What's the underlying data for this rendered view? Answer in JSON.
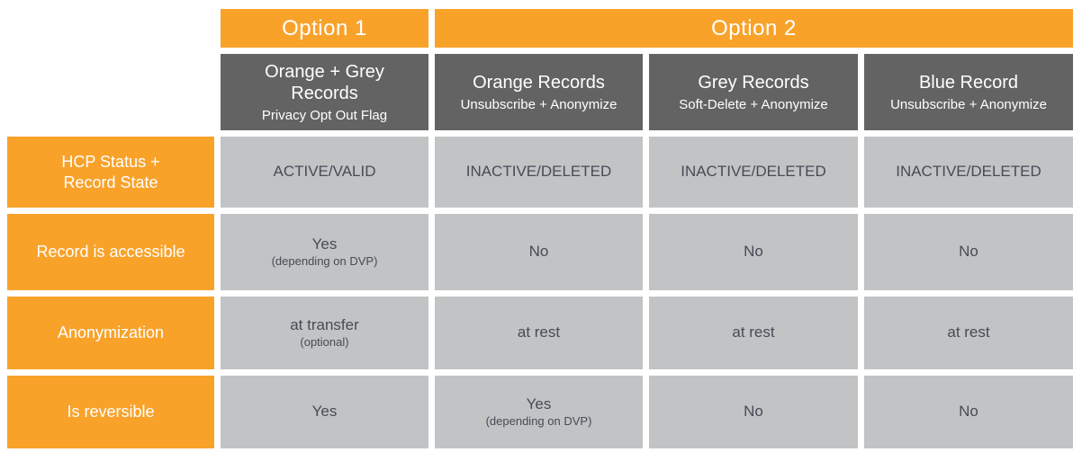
{
  "colors": {
    "orange": "#F9A22A",
    "header_grey": "#636363",
    "cell_grey": "#C2C3C5",
    "cell_text": "#474B54",
    "white_text": "#FFFFFF"
  },
  "option_row": {
    "option1": "Option 1",
    "option2": "Option 2"
  },
  "column_headers": [
    {
      "title": "Orange + Grey\nRecords",
      "subtitle": "Privacy Opt Out Flag"
    },
    {
      "title": "Orange Records",
      "subtitle": "Unsubscribe + Anonymize"
    },
    {
      "title": "Grey Records",
      "subtitle": "Soft-Delete + Anonymize"
    },
    {
      "title": "Blue Record",
      "subtitle": "Unsubscribe + Anonymize"
    }
  ],
  "rows": [
    {
      "label": "HCP Status +\nRecord State",
      "cells": [
        {
          "main": "ACTIVE/VALID"
        },
        {
          "main": "INACTIVE/DELETED"
        },
        {
          "main": "INACTIVE/DELETED"
        },
        {
          "main": "INACTIVE/DELETED"
        }
      ]
    },
    {
      "label": "Record is accessible",
      "cells": [
        {
          "main": "Yes",
          "note": "(depending on DVP)"
        },
        {
          "main": "No"
        },
        {
          "main": "No"
        },
        {
          "main": "No"
        }
      ]
    },
    {
      "label": "Anonymization",
      "cells": [
        {
          "main": "at transfer",
          "note": "(optional)"
        },
        {
          "main": "at rest"
        },
        {
          "main": "at rest"
        },
        {
          "main": "at rest"
        }
      ]
    },
    {
      "label": "Is reversible",
      "cells": [
        {
          "main": "Yes"
        },
        {
          "main": "Yes",
          "note": "(depending on DVP)"
        },
        {
          "main": "No"
        },
        {
          "main": "No"
        }
      ]
    }
  ]
}
